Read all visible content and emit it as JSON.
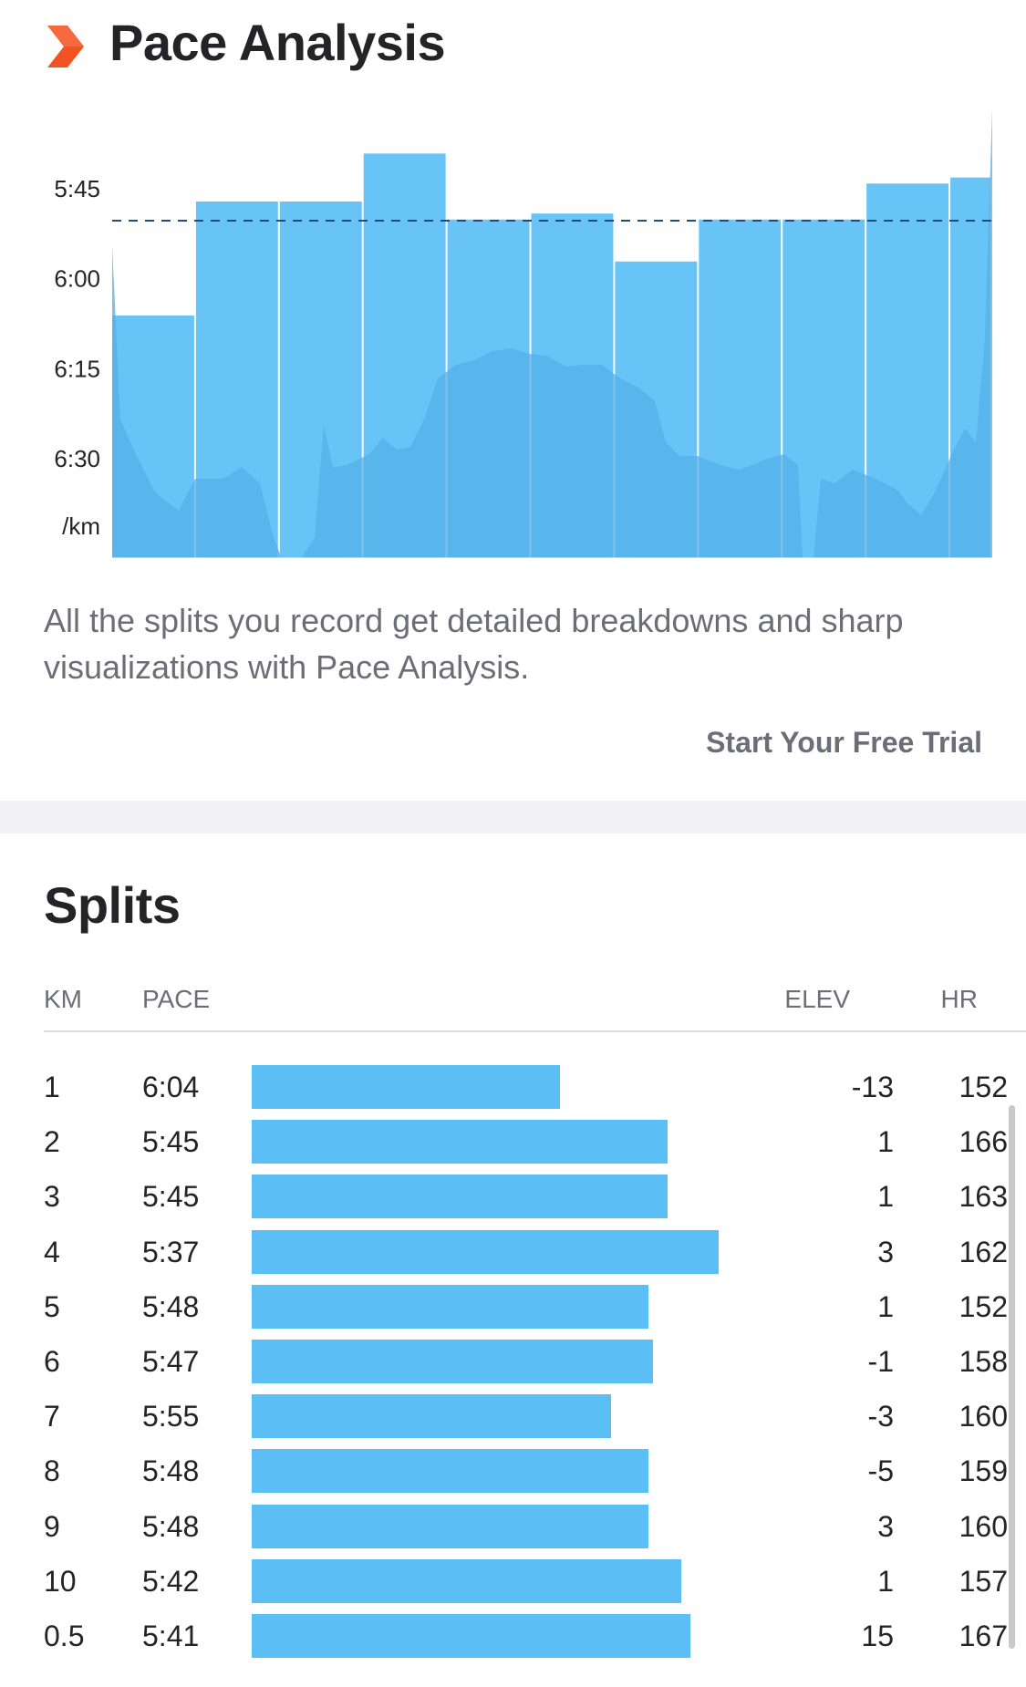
{
  "header": {
    "title": "Pace Analysis",
    "brand_icon": "chevron-right-icon",
    "brand_color": "#f05222"
  },
  "chart_data": {
    "type": "bar",
    "categories": [
      "1",
      "2",
      "3",
      "4",
      "5",
      "6",
      "7",
      "8",
      "9",
      "10",
      "0.5"
    ],
    "values": [
      "6:04",
      "5:45",
      "5:45",
      "5:37",
      "5:48",
      "5:47",
      "5:55",
      "5:48",
      "5:48",
      "5:42",
      "5:41"
    ],
    "value_seconds": [
      364,
      345,
      345,
      337,
      348,
      347,
      355,
      348,
      348,
      342,
      341
    ],
    "bar_widths_km": [
      1,
      1,
      1,
      1,
      1,
      1,
      1,
      1,
      1,
      1,
      0.5
    ],
    "y_ticks": [
      "5:45",
      "6:00",
      "6:15",
      "6:30"
    ],
    "y_unit": "/km",
    "y_axis_reversed": true,
    "reference_line": "average pace (dashed)",
    "bar_color": "#5bbff6",
    "reference_line_color": "#1f4e79",
    "grid": false
  },
  "promo": {
    "text": "All the splits you record get detailed breakdowns and sharp visualizations with Pace Analysis.",
    "cta_label": "Start Your Free Trial"
  },
  "splits": {
    "title": "Splits",
    "columns": {
      "km": "KM",
      "pace": "PACE",
      "elev": "ELEV",
      "hr": "HR"
    },
    "bar_color": "#5bbff6",
    "rows": [
      {
        "km": "1",
        "pace": "6:04",
        "elev": "-13",
        "hr": "152",
        "pace_fraction": 0.66
      },
      {
        "km": "2",
        "pace": "5:45",
        "elev": "1",
        "hr": "166",
        "pace_fraction": 0.89
      },
      {
        "km": "3",
        "pace": "5:45",
        "elev": "1",
        "hr": "163",
        "pace_fraction": 0.89
      },
      {
        "km": "4",
        "pace": "5:37",
        "elev": "3",
        "hr": "162",
        "pace_fraction": 1.0
      },
      {
        "km": "5",
        "pace": "5:48",
        "elev": "1",
        "hr": "152",
        "pace_fraction": 0.85
      },
      {
        "km": "6",
        "pace": "5:47",
        "elev": "-1",
        "hr": "158",
        "pace_fraction": 0.86
      },
      {
        "km": "7",
        "pace": "5:55",
        "elev": "-3",
        "hr": "160",
        "pace_fraction": 0.77
      },
      {
        "km": "8",
        "pace": "5:48",
        "elev": "-5",
        "hr": "159",
        "pace_fraction": 0.85
      },
      {
        "km": "9",
        "pace": "5:48",
        "elev": "3",
        "hr": "160",
        "pace_fraction": 0.85
      },
      {
        "km": "10",
        "pace": "5:42",
        "elev": "1",
        "hr": "157",
        "pace_fraction": 0.92
      },
      {
        "km": "0.5",
        "pace": "5:41",
        "elev": "15",
        "hr": "167",
        "pace_fraction": 0.94
      }
    ]
  }
}
